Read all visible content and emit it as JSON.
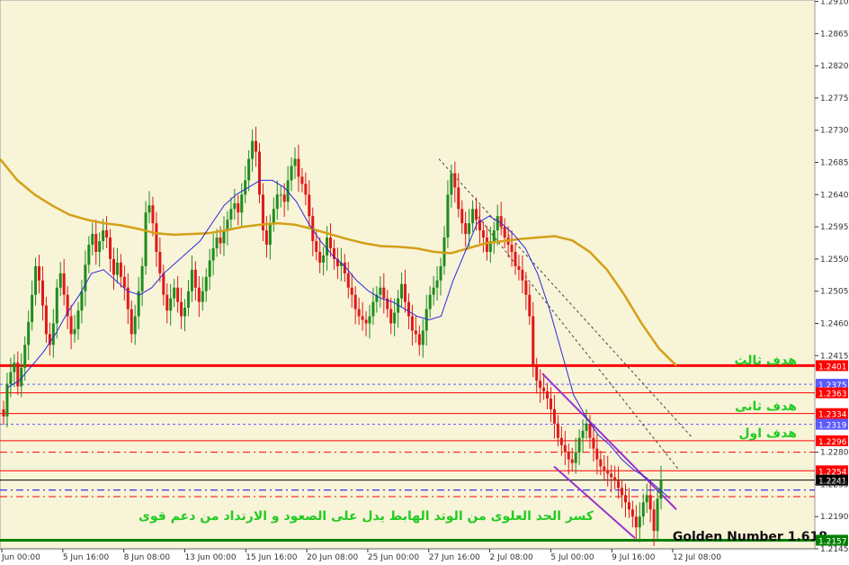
{
  "chart_data": {
    "type": "candlestick",
    "symbol_timeframe": "",
    "ylim": [
      1.2145,
      1.2912
    ],
    "y_ticks": [
      1.291,
      1.2865,
      1.282,
      1.2775,
      1.273,
      1.2685,
      1.264,
      1.2595,
      1.255,
      1.2505,
      1.246,
      1.2415,
      1.228,
      1.2235,
      1.219,
      1.2145
    ],
    "x_ticks": [
      "Jun 00:00",
      "5 Jun 16:00",
      "8 Jun 08:00",
      "13 Jun 00:00",
      "15 Jun 16:00",
      "20 Jun 08:00",
      "25 Jun 00:00",
      "27 Jun 16:00",
      "2 Jul 08:00",
      "5 Jul 00:00",
      "9 Jul 16:00",
      "12 Jul 08:00"
    ],
    "candles_closes": [
      1.233,
      1.2375,
      1.2392,
      1.2405,
      1.2372,
      1.2398,
      1.243,
      1.2462,
      1.25,
      1.254,
      1.252,
      1.2485,
      1.2445,
      1.243,
      1.246,
      1.251,
      1.253,
      1.25,
      1.247,
      1.2445,
      1.2452,
      1.2478,
      1.2505,
      1.2542,
      1.257,
      1.2585,
      1.256,
      1.2575,
      1.259,
      1.258,
      1.255,
      1.2528,
      1.2545,
      1.2525,
      1.251,
      1.248,
      1.2445,
      1.247,
      1.2505,
      1.254,
      1.2615,
      1.2625,
      1.26,
      1.256,
      1.253,
      1.25,
      1.2478,
      1.2495,
      1.251,
      1.249,
      1.247,
      1.2482,
      1.2505,
      1.2535,
      1.251,
      1.249,
      1.2505,
      1.2525,
      1.2548,
      1.2565,
      1.258,
      1.2572,
      1.259,
      1.2605,
      1.262,
      1.2628,
      1.2615,
      1.264,
      1.266,
      1.269,
      1.2715,
      1.27,
      1.264,
      1.259,
      1.257,
      1.26,
      1.262,
      1.264,
      1.264,
      1.263,
      1.266,
      1.268,
      1.269,
      1.2665,
      1.2655,
      1.264,
      1.261,
      1.2575,
      1.256,
      1.2545,
      1.2555,
      1.258,
      1.2565,
      1.255,
      1.254,
      1.2545,
      1.253,
      1.251,
      1.25,
      1.248,
      1.247,
      1.2465,
      1.246,
      1.247,
      1.249,
      1.25,
      1.251,
      1.2495,
      1.248,
      1.246,
      1.2475,
      1.2495,
      1.2515,
      1.249,
      1.247,
      1.245,
      1.2445,
      1.243,
      1.245,
      1.248,
      1.25,
      1.251,
      1.252,
      1.254,
      1.258,
      1.264,
      1.267,
      1.265,
      1.262,
      1.26,
      1.2585,
      1.26,
      1.262,
      1.2605,
      1.259,
      1.258,
      1.256,
      1.2575,
      1.259,
      1.261,
      1.2595,
      1.258,
      1.257,
      1.256,
      1.254,
      1.2535,
      1.252,
      1.25,
      1.247,
      1.24,
      1.238,
      1.237,
      1.2365,
      1.2355,
      1.234,
      1.232,
      1.23,
      1.229,
      1.228,
      1.227,
      1.2265,
      1.228,
      1.23,
      1.231,
      1.232,
      1.23,
      1.2285,
      1.227,
      1.226,
      1.2255,
      1.225,
      1.2245,
      1.224,
      1.223,
      1.222,
      1.221,
      1.22,
      1.219,
      1.2175,
      1.219,
      1.221,
      1.222,
      1.22,
      1.217,
      1.2215,
      1.2241
    ],
    "ma_fast_levels": [
      1.237,
      1.238,
      1.24,
      1.242,
      1.2445,
      1.2475,
      1.25,
      1.253,
      1.2535,
      1.252,
      1.2505,
      1.25,
      1.251,
      1.253,
      1.2545,
      1.256,
      1.2575,
      1.26,
      1.2625,
      1.264,
      1.265,
      1.266,
      1.266,
      1.265,
      1.263,
      1.26,
      1.2575,
      1.2555,
      1.254,
      1.252,
      1.2505,
      1.2495,
      1.249,
      1.248,
      1.247,
      1.2465,
      1.247,
      1.252,
      1.256,
      1.26,
      1.261,
      1.26,
      1.2585,
      1.2565,
      1.253,
      1.248,
      1.242,
      1.236,
      1.233,
      1.2305,
      1.229,
      1.227,
      1.2255,
      1.2245,
      1.223,
      1.2215
    ],
    "ma_slow_levels": [
      1.269,
      1.266,
      1.264,
      1.2625,
      1.2612,
      1.2605,
      1.26,
      1.2597,
      1.2592,
      1.2586,
      1.2584,
      1.2585,
      1.2586,
      1.259,
      1.2595,
      1.2598,
      1.26,
      1.2598,
      1.2592,
      1.2585,
      1.2578,
      1.2572,
      1.2568,
      1.2567,
      1.2565,
      1.256,
      1.2558,
      1.2565,
      1.2572,
      1.2575,
      1.2578,
      1.258,
      1.2582,
      1.2576,
      1.256,
      1.2535,
      1.25,
      1.246,
      1.2425,
      1.2401
    ],
    "price_levels": [
      {
        "value": 1.2401,
        "color": "#ff0000",
        "style": "thick",
        "label": "1.2401"
      },
      {
        "value": 1.2375,
        "color": "#5a5aff",
        "style": "dash",
        "label": "1.2375"
      },
      {
        "value": 1.2363,
        "color": "#ff0000",
        "style": "thin",
        "label": "1.2363"
      },
      {
        "value": 1.2334,
        "color": "#ff0000",
        "style": "thin",
        "label": "1.2334"
      },
      {
        "value": 1.2319,
        "color": "#5a5aff",
        "style": "dash",
        "label": "1.2319"
      },
      {
        "value": 1.2296,
        "color": "#ff0000",
        "style": "thin",
        "label": "1.2296"
      },
      {
        "value": 1.228,
        "color": "#ff0000",
        "style": "dashdot",
        "label": ""
      },
      {
        "value": 1.2254,
        "color": "#ff0000",
        "style": "thin",
        "label": "1.2254"
      },
      {
        "value": 1.2241,
        "color": "#000000",
        "style": "thin",
        "label": "1.2241"
      },
      {
        "value": 1.2227,
        "color": "#0000ff",
        "style": "dashdot",
        "label": ""
      },
      {
        "value": 1.2218,
        "color": "#ff0000",
        "style": "dashdot",
        "label": ""
      },
      {
        "value": 1.2157,
        "color": "#008000",
        "style": "thick",
        "label": "1.2157"
      }
    ],
    "annotations": {
      "target_3": "هدف ثالث",
      "target_2": "هدف ثانى",
      "target_1": "هدف اول",
      "breakout_note": "كسر الحد العلوى من الوتد الهابط يدل على الصعود و الارتداد من دعم قوى",
      "golden": "Golden Number 1.618"
    }
  },
  "colors": {
    "plot_bg": "#f8f4d8",
    "bull": "#1e8c1e",
    "bear": "#e01818",
    "ma_fast": "#2a2ad8",
    "ma_slow": "#d4a017",
    "wedge": "#9933cc",
    "annotation": "#22cc22"
  }
}
